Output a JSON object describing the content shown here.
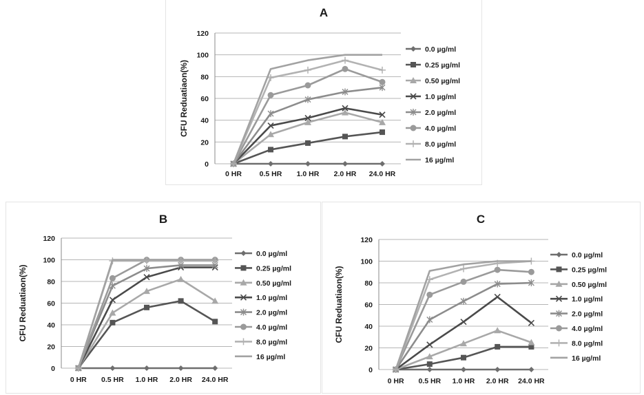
{
  "series_styles": [
    {
      "color": "#6e6e6e",
      "marker": "diamond"
    },
    {
      "color": "#555555",
      "marker": "square"
    },
    {
      "color": "#a8a8a8",
      "marker": "triangle"
    },
    {
      "color": "#4a4a4a",
      "marker": "x"
    },
    {
      "color": "#8c8c8c",
      "marker": "star"
    },
    {
      "color": "#9a9a9a",
      "marker": "circle"
    },
    {
      "color": "#b2b2b2",
      "marker": "plus"
    },
    {
      "color": "#a2a2a2",
      "marker": "none"
    }
  ],
  "chart_data": [
    {
      "type": "line",
      "title": "A",
      "xlabel": "",
      "ylabel": "CFU Reduatiaon(%)",
      "categories": [
        "0 HR",
        "0.5 HR",
        "1.0 HR",
        "2.0 HR",
        "24.0 HR"
      ],
      "ylim": [
        0,
        120
      ],
      "yticks": [
        0,
        20,
        40,
        60,
        80,
        100,
        120
      ],
      "grid": true,
      "legend": "right",
      "series": [
        {
          "name": "0.0 µg/ml",
          "values": [
            0,
            0,
            0,
            0,
            0
          ]
        },
        {
          "name": "0.25 µg/ml",
          "values": [
            0,
            13,
            19,
            25,
            29
          ]
        },
        {
          "name": "0.50 µg/ml",
          "values": [
            0,
            27,
            38,
            47,
            38
          ]
        },
        {
          "name": "1.0 µg/ml",
          "values": [
            0,
            35,
            42,
            51,
            45
          ]
        },
        {
          "name": "2.0 µg/ml",
          "values": [
            0,
            46,
            59,
            66,
            70
          ]
        },
        {
          "name": "4.0 µg/ml",
          "values": [
            0,
            63,
            72,
            87,
            75
          ]
        },
        {
          "name": "8.0 µg/ml",
          "values": [
            0,
            79,
            86,
            95,
            86
          ]
        },
        {
          "name": "16 µg/ml",
          "values": [
            0,
            87,
            95,
            100,
            100
          ]
        }
      ]
    },
    {
      "type": "line",
      "title": "B",
      "xlabel": "",
      "ylabel": "CFU Reduatiaon(%)",
      "categories": [
        "0 HR",
        "0.5 HR",
        "1.0 HR",
        "2.0 HR",
        "24.0 HR"
      ],
      "ylim": [
        0,
        120
      ],
      "yticks": [
        0,
        20,
        40,
        60,
        80,
        100,
        120
      ],
      "grid": true,
      "legend": "right",
      "series": [
        {
          "name": "0.0 µg/ml",
          "values": [
            0,
            0,
            0,
            0,
            0
          ]
        },
        {
          "name": "0.25 µg/ml",
          "values": [
            0,
            42,
            56,
            62,
            43
          ]
        },
        {
          "name": "0.50 µg/ml",
          "values": [
            0,
            51,
            71,
            82,
            62
          ]
        },
        {
          "name": "1.0 µg/ml",
          "values": [
            0,
            63,
            84,
            93,
            93
          ]
        },
        {
          "name": "2.0 µg/ml",
          "values": [
            0,
            76,
            92,
            95,
            95
          ]
        },
        {
          "name": "4.0 µg/ml",
          "values": [
            0,
            83,
            100,
            100,
            100
          ]
        },
        {
          "name": "8.0 µg/ml",
          "values": [
            0,
            99,
            99,
            99,
            99
          ]
        },
        {
          "name": "16 µg/ml",
          "values": [
            0,
            100,
            100,
            100,
            100
          ]
        }
      ]
    },
    {
      "type": "line",
      "title": "C",
      "xlabel": "",
      "ylabel": "CFU Reduatiaon(%)",
      "categories": [
        "0 HR",
        "0.5 HR",
        "1.0 HR",
        "2.0 HR",
        "24.0 HR"
      ],
      "ylim": [
        0,
        120
      ],
      "yticks": [
        0,
        20,
        40,
        60,
        80,
        100,
        120
      ],
      "grid": true,
      "legend": "right",
      "series": [
        {
          "name": "0.0 µg/ml",
          "values": [
            0,
            0,
            0,
            0,
            0
          ]
        },
        {
          "name": "0.25 µg/ml",
          "values": [
            0,
            5,
            11,
            21,
            21
          ]
        },
        {
          "name": "0.50 µg/ml",
          "values": [
            0,
            12,
            24,
            36,
            25
          ]
        },
        {
          "name": "1.0 µg/ml",
          "values": [
            0,
            23,
            44,
            67,
            43
          ]
        },
        {
          "name": "2.0 µg/ml",
          "values": [
            0,
            46,
            63,
            79,
            80
          ]
        },
        {
          "name": "4.0 µg/ml",
          "values": [
            0,
            69,
            81,
            92,
            90
          ]
        },
        {
          "name": "8.0 µg/ml",
          "values": [
            0,
            83,
            93,
            98,
            100
          ]
        },
        {
          "name": "16 µg/ml",
          "values": [
            0,
            91,
            97,
            100,
            100
          ]
        }
      ]
    }
  ]
}
